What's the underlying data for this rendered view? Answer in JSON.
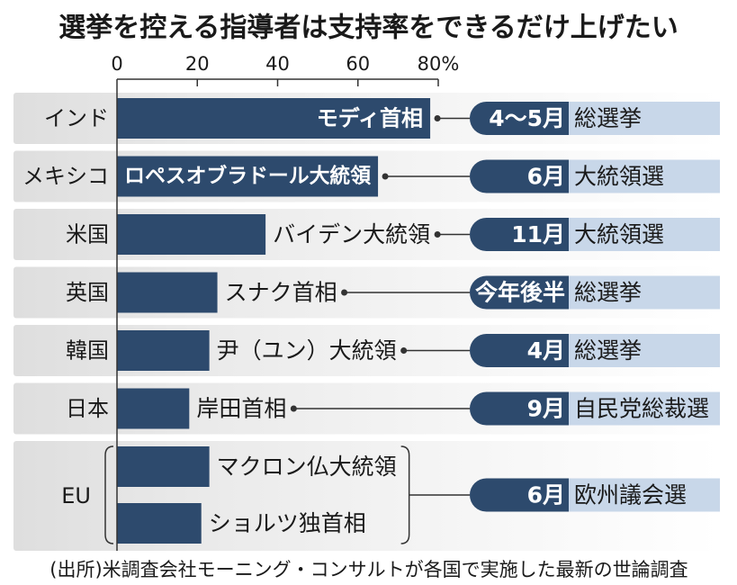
{
  "colors": {
    "bar": "#2d4a6d",
    "badge": "#2d4a6d",
    "band": "#c8d7e9",
    "row_bg": "#dedede"
  },
  "source": "(出所)米調査会社モーニング・コンサルトが各国で実施した最新の世論調査",
  "chart_data": {
    "type": "bar",
    "orientation": "horizontal",
    "title": "選挙を控える指導者は支持率をできるだけ上げたい",
    "xlim": [
      0,
      80
    ],
    "ticks": [
      {
        "value": 0,
        "label": "0"
      },
      {
        "value": 20,
        "label": "20"
      },
      {
        "value": 40,
        "label": "40"
      },
      {
        "value": 60,
        "label": "60"
      },
      {
        "value": 80,
        "label": "80%"
      }
    ],
    "grid": false,
    "show_legend": false,
    "groups": [
      {
        "country": "インド",
        "bars": [
          {
            "leader": "モディ首相",
            "value": 78
          }
        ],
        "election": {
          "when": "4～5月",
          "what": "総選挙"
        }
      },
      {
        "country": "メキシコ",
        "bars": [
          {
            "leader": "ロペスオブラドール大統領",
            "value": 65
          }
        ],
        "election": {
          "when": "6月",
          "what": "大統領選"
        }
      },
      {
        "country": "米国",
        "bars": [
          {
            "leader": "バイデン大統領",
            "value": 37
          }
        ],
        "election": {
          "when": "11月",
          "what": "大統領選"
        }
      },
      {
        "country": "英国",
        "bars": [
          {
            "leader": "スナク首相",
            "value": 25
          }
        ],
        "election": {
          "when": "今年後半",
          "what": "総選挙"
        }
      },
      {
        "country": "韓国",
        "bars": [
          {
            "leader": "尹（ユン）大統領",
            "value": 23
          }
        ],
        "election": {
          "when": "4月",
          "what": "総選挙"
        }
      },
      {
        "country": "日本",
        "bars": [
          {
            "leader": "岸田首相",
            "value": 18
          }
        ],
        "election": {
          "when": "9月",
          "what": "自民党総裁選"
        }
      },
      {
        "country": "EU",
        "bars": [
          {
            "leader": "マクロン仏大統領",
            "value": 23
          },
          {
            "leader": "ショルツ独首相",
            "value": 21
          }
        ],
        "election": {
          "when": "6月",
          "what": "欧州議会選"
        }
      }
    ]
  }
}
